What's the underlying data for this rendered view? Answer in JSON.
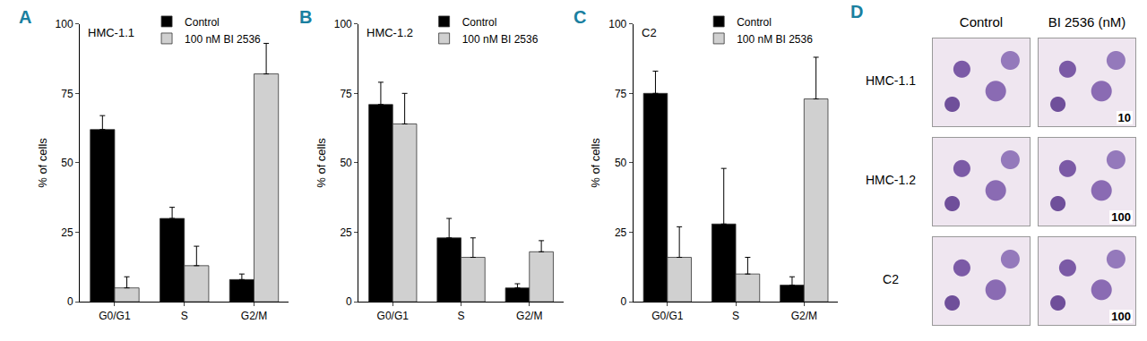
{
  "chart_data": [
    {
      "type": "bar",
      "panel_label": "A",
      "title": "HMC-1.1",
      "y_label": "% of cells",
      "categories": [
        "G0/G1",
        "S",
        "G2/M"
      ],
      "series": [
        {
          "name": "Control",
          "color": "#000000",
          "values": [
            62,
            30,
            8
          ],
          "error": [
            5,
            4,
            2
          ]
        },
        {
          "name": "100 nM BI 2536",
          "color": "#d0d0d0",
          "values": [
            5,
            13,
            82
          ],
          "error": [
            4,
            7,
            11
          ]
        }
      ],
      "ylim": [
        0,
        100
      ],
      "yticks": [
        0,
        25,
        50,
        75,
        100
      ],
      "grid": false,
      "legend": "top"
    },
    {
      "type": "bar",
      "panel_label": "B",
      "title": "HMC-1.2",
      "y_label": "% of cells",
      "categories": [
        "G0/G1",
        "S",
        "G2/M"
      ],
      "series": [
        {
          "name": "Control",
          "color": "#000000",
          "values": [
            71,
            23,
            5
          ],
          "error": [
            8,
            7,
            1.5
          ]
        },
        {
          "name": "100 nM BI 2536",
          "color": "#d0d0d0",
          "values": [
            64,
            16,
            18
          ],
          "error": [
            11,
            7,
            4
          ]
        }
      ],
      "ylim": [
        0,
        100
      ],
      "yticks": [
        0,
        25,
        50,
        75,
        100
      ],
      "grid": false,
      "legend": "top"
    },
    {
      "type": "bar",
      "panel_label": "C",
      "title": "C2",
      "y_label": "% of cells",
      "categories": [
        "G0/G1",
        "S",
        "G2/M"
      ],
      "series": [
        {
          "name": "Control",
          "color": "#000000",
          "values": [
            75,
            28,
            6
          ],
          "error": [
            8,
            20,
            3
          ]
        },
        {
          "name": "100 nM BI 2536",
          "color": "#d0d0d0",
          "values": [
            16,
            10,
            73
          ],
          "error": [
            11,
            6,
            15
          ]
        }
      ],
      "ylim": [
        0,
        100
      ],
      "yticks": [
        0,
        25,
        50,
        75,
        100
      ],
      "grid": false,
      "legend": "top"
    }
  ],
  "panel_d": {
    "panel_label": "D",
    "columns": [
      "Control",
      "BI 2536 (nM)"
    ],
    "rows": [
      {
        "name": "HMC-1.1",
        "dose": "10"
      },
      {
        "name": "HMC-1.2",
        "dose": "100"
      },
      {
        "name": "C2",
        "dose": "100"
      }
    ]
  }
}
